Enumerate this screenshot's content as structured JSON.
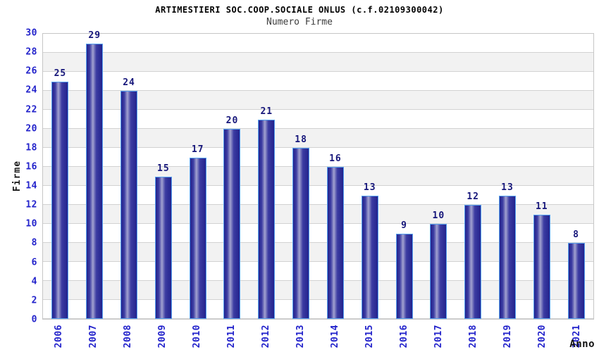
{
  "header": {
    "title": "ARTIMESTIERI SOC.COOP.SOCIALE ONLUS (c.f.02109300042)",
    "subtitle": "Numero Firme"
  },
  "chart_data": {
    "type": "bar",
    "title": "ARTIMESTIERI SOC.COOP.SOCIALE ONLUS (c.f.02109300042)",
    "subtitle": "Numero Firme",
    "categories": [
      "2006",
      "2007",
      "2008",
      "2009",
      "2010",
      "2011",
      "2012",
      "2013",
      "2014",
      "2015",
      "2016",
      "2017",
      "2018",
      "2019",
      "2020",
      "2021"
    ],
    "values": [
      25,
      29,
      24,
      15,
      17,
      20,
      21,
      18,
      16,
      13,
      9,
      10,
      12,
      13,
      11,
      8
    ],
    "xlabel": "Anno",
    "ylabel": "Firme",
    "ylim": [
      0,
      30
    ],
    "ytick_step": 2,
    "grid": true,
    "legend": "none",
    "band_background": "alternating horizontal stripes every 2 units",
    "colors": {
      "bar_edge": "#23238d",
      "bar_mid": "#3c3ca2",
      "bar_highlight": "#a2a2d0",
      "bar_border": "#55a0f0",
      "axis_label": "#2323cb",
      "value_label": "#16167a",
      "band_gray": "#f2f2f2",
      "gridline": "#d2d2d2"
    }
  }
}
